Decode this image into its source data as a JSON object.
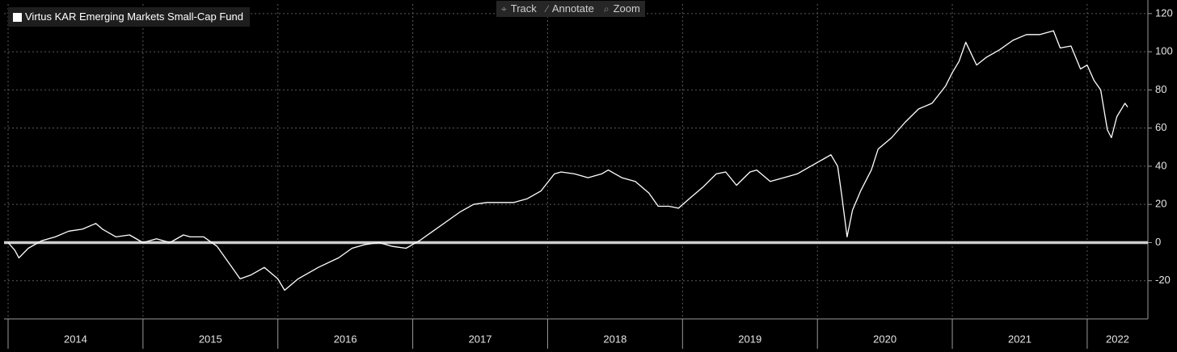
{
  "toolbar": [
    "Track",
    "Annotate",
    "Zoom"
  ],
  "chart_data": {
    "type": "line",
    "series": [
      {
        "name": "Virtus KAR Emerging Markets Small-Cap Fund",
        "color": "#ffffff",
        "x": [
          2014.0,
          2014.05,
          2014.08,
          2014.15,
          2014.25,
          2014.35,
          2014.45,
          2014.55,
          2014.65,
          2014.7,
          2014.8,
          2014.9,
          2015.0,
          2015.1,
          2015.2,
          2015.3,
          2015.35,
          2015.45,
          2015.55,
          2015.65,
          2015.72,
          2015.8,
          2015.9,
          2016.0,
          2016.05,
          2016.15,
          2016.3,
          2016.45,
          2016.55,
          2016.65,
          2016.75,
          2016.85,
          2016.95,
          2017.05,
          2017.15,
          2017.25,
          2017.35,
          2017.45,
          2017.55,
          2017.65,
          2017.75,
          2017.85,
          2017.95,
          2018.05,
          2018.1,
          2018.2,
          2018.3,
          2018.4,
          2018.45,
          2018.55,
          2018.65,
          2018.75,
          2018.82,
          2018.9,
          2018.97,
          2019.05,
          2019.15,
          2019.25,
          2019.32,
          2019.4,
          2019.5,
          2019.55,
          2019.65,
          2019.75,
          2019.85,
          2019.95,
          2020.05,
          2020.1,
          2020.15,
          2020.18,
          2020.22,
          2020.26,
          2020.32,
          2020.4,
          2020.45,
          2020.55,
          2020.65,
          2020.75,
          2020.85,
          2020.95,
          2021.0,
          2021.05,
          2021.1,
          2021.18,
          2021.25,
          2021.35,
          2021.45,
          2021.55,
          2021.65,
          2021.75,
          2021.8,
          2021.88,
          2021.95,
          2022.0,
          2022.05,
          2022.1,
          2022.15,
          2022.18,
          2022.22,
          2022.28,
          2022.3
        ],
        "values": [
          0,
          -4,
          -8,
          -3,
          1,
          3,
          6,
          7,
          10,
          7,
          3,
          4,
          0,
          2,
          0,
          4,
          3,
          3,
          -2,
          -12,
          -19,
          -17,
          -13,
          -19,
          -25,
          -19,
          -13,
          -8,
          -3,
          -1,
          0,
          -2,
          -3,
          1,
          6,
          11,
          16,
          20,
          21,
          21,
          21,
          23,
          27,
          36,
          37,
          36,
          34,
          36,
          38,
          34,
          32,
          26,
          19,
          19,
          18,
          23,
          29,
          36,
          37,
          30,
          37,
          38,
          32,
          34,
          36,
          40,
          44,
          46,
          40,
          25,
          3,
          17,
          27,
          38,
          49,
          55,
          63,
          70,
          73,
          82,
          89,
          95,
          105,
          93,
          97,
          101,
          106,
          109,
          109,
          111,
          102,
          103,
          91,
          93,
          85,
          80,
          59,
          55,
          66,
          73,
          71
        ]
      }
    ],
    "xlim": [
      2013.97,
      2022.45
    ],
    "xticks": [
      {
        "value": 2014,
        "label": "2014"
      },
      {
        "value": 2015,
        "label": "2015"
      },
      {
        "value": 2016,
        "label": "2016"
      },
      {
        "value": 2017,
        "label": "2017"
      },
      {
        "value": 2018,
        "label": "2018"
      },
      {
        "value": 2019,
        "label": "2019"
      },
      {
        "value": 2020,
        "label": "2020"
      },
      {
        "value": 2021,
        "label": "2021"
      },
      {
        "value": 2022,
        "label": "2022"
      }
    ],
    "ylim": [
      -40,
      125
    ],
    "yticks": [
      -20,
      0,
      20,
      40,
      60,
      80,
      100,
      120
    ],
    "hline": 0,
    "grid": true
  }
}
